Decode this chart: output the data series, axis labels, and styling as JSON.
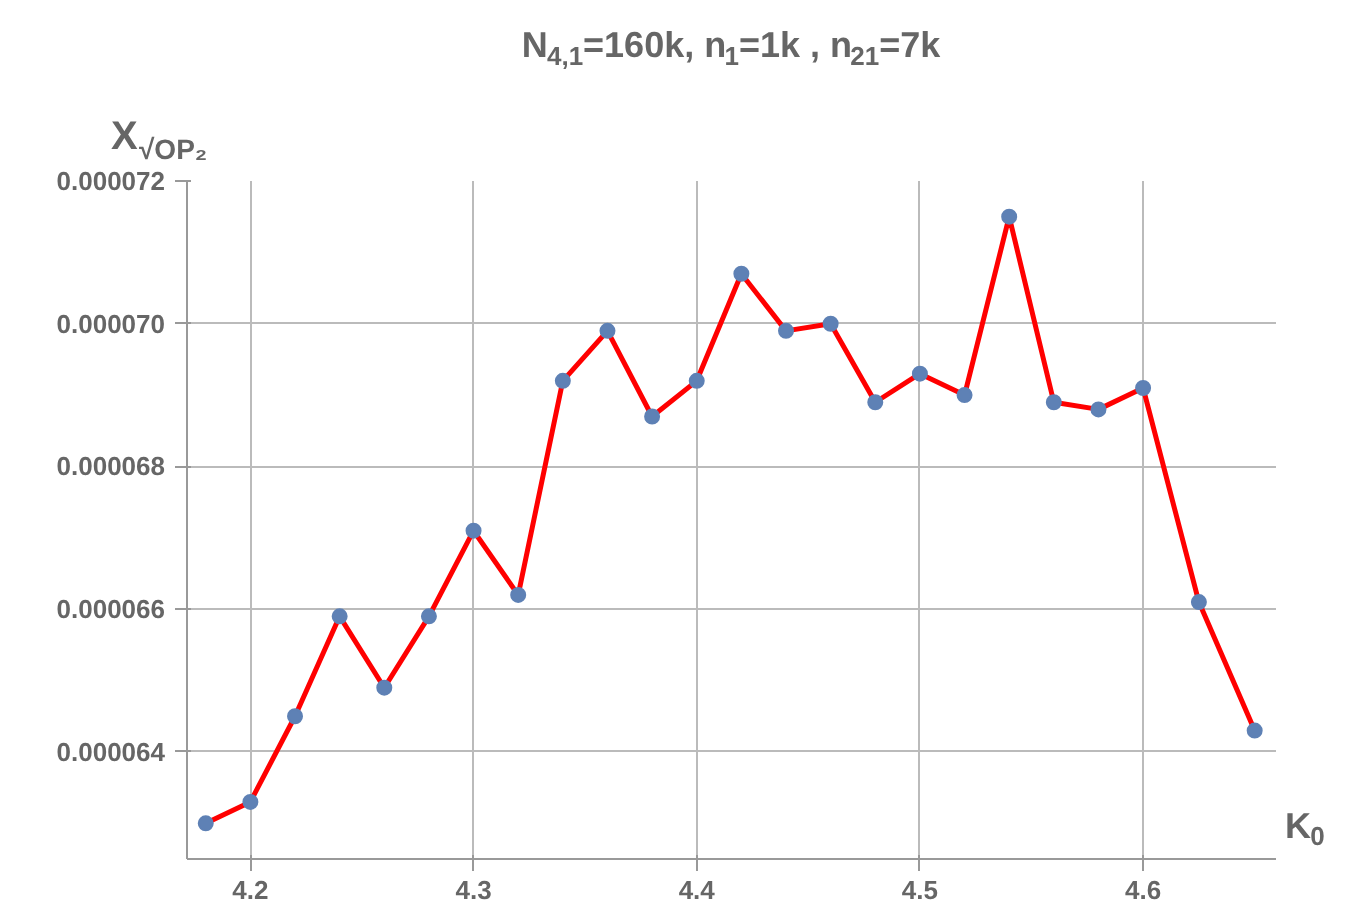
{
  "chart_data": {
    "type": "line",
    "title": "N$_{4,1}$=160k, n$_{1}$=1k , n$_{21}$=7k",
    "xlabel": "K$_{0}$",
    "ylabel": "X$_{√OP₂}$",
    "x": [
      4.18,
      4.2,
      4.22,
      4.24,
      4.26,
      4.28,
      4.3,
      4.32,
      4.34,
      4.36,
      4.38,
      4.4,
      4.42,
      4.44,
      4.46,
      4.48,
      4.5,
      4.52,
      4.54,
      4.56,
      4.58,
      4.6,
      4.625,
      4.65
    ],
    "series": [
      {
        "color": "#ff0000",
        "values": [
          6.3e-05,
          6.33e-05,
          6.45e-05,
          6.59e-05,
          6.49e-05,
          6.59e-05,
          6.71e-05,
          6.62e-05,
          6.92e-05,
          6.99e-05,
          6.87e-05,
          6.92e-05,
          7.07e-05,
          6.99e-05,
          7e-05,
          6.89e-05,
          6.93e-05,
          6.9e-05,
          7.15e-05,
          6.89e-05,
          6.88e-05,
          6.91e-05,
          6.61e-05,
          6.43e-05
        ]
      }
    ],
    "xlim": [
      4.1716,
      4.66
    ],
    "ylim": [
      6.25e-05,
      7.2e-05
    ],
    "xticks": [
      4.2,
      4.3,
      4.4,
      4.5,
      4.6
    ],
    "yticks": [
      {
        "value": 6.4e-05,
        "label": "0.000064"
      },
      {
        "value": 6.6e-05,
        "label": "0.000066"
      },
      {
        "value": 6.8e-05,
        "label": "0.000068"
      },
      {
        "value": 7e-05,
        "label": "0.000070"
      },
      {
        "value": 7.2e-05,
        "label": "0.000072"
      }
    ],
    "grid": true,
    "marker": "circle",
    "line_style": "solid"
  }
}
